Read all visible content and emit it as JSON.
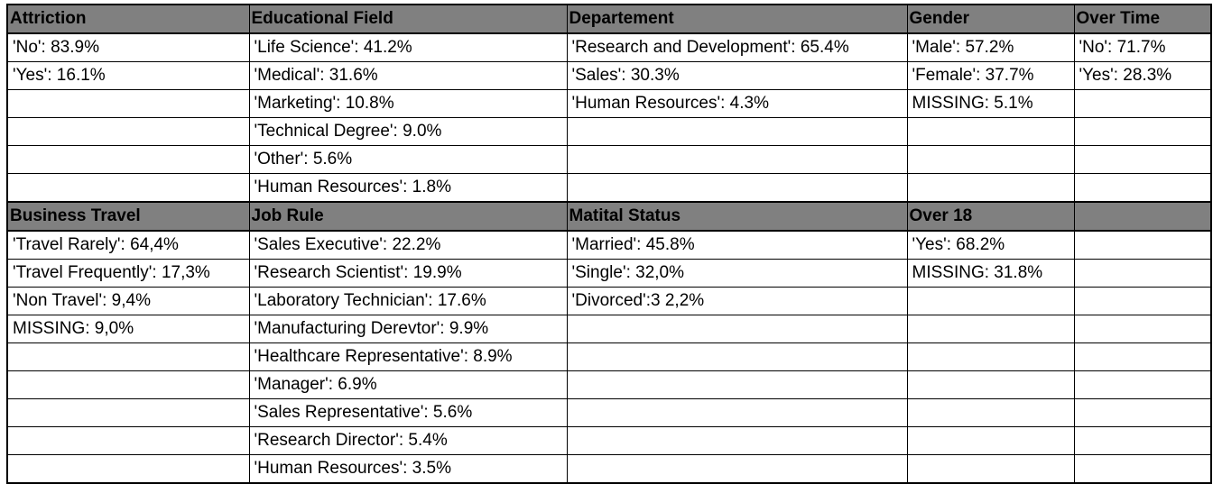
{
  "sections": [
    {
      "headers": [
        "Attriction",
        "Educational Field",
        "Departement",
        "Gender",
        "Over Time"
      ],
      "rows": [
        [
          "'No': 83.9%",
          "'Life Science': 41.2%",
          "'Research and Development':  65.4%",
          "'Male': 57.2%",
          "'No': 71.7%"
        ],
        [
          "'Yes': 16.1%",
          "'Medical': 31.6%",
          "'Sales': 30.3%",
          "'Female': 37.7%",
          "'Yes': 28.3%"
        ],
        [
          "",
          "'Marketing': 10.8%",
          "'Human Resources': 4.3%",
          "MISSING: 5.1%",
          ""
        ],
        [
          "",
          "'Technical Degree': 9.0%",
          "",
          "",
          ""
        ],
        [
          "",
          "'Other': 5.6%",
          "",
          "",
          ""
        ],
        [
          "",
          "'Human Resources': 1.8%",
          "",
          "",
          ""
        ]
      ]
    },
    {
      "headers": [
        "Business Travel",
        "Job Rule",
        "Matital Status",
        "Over 18",
        ""
      ],
      "rows": [
        [
          "'Travel Rarely': 64,4%",
          "'Sales Executive': 22.2%",
          "'Married': 45.8%",
          "'Yes': 68.2%",
          ""
        ],
        [
          "'Travel Frequently': 17,3%",
          "'Research Scientist': 19.9%",
          "'Single': 32,0%",
          "MISSING: 31.8%",
          ""
        ],
        [
          "'Non Travel': 9,4%",
          "'Laboratory Technician': 17.6%",
          "'Divorced':3 2,2%",
          "",
          ""
        ],
        [
          "MISSING: 9,0%",
          "'Manufacturing Derevtor': 9.9%",
          "",
          "",
          ""
        ],
        [
          "",
          "'Healthcare Representative': 8.9%",
          "",
          "",
          ""
        ],
        [
          "",
          "'Manager': 6.9%",
          "",
          "",
          ""
        ],
        [
          "",
          "'Sales Representative': 5.6%",
          "",
          "",
          ""
        ],
        [
          "",
          "'Research Director': 5.4%",
          "",
          "",
          ""
        ],
        [
          "",
          "'Human Resources': 3.5%",
          "",
          "",
          ""
        ]
      ]
    }
  ]
}
